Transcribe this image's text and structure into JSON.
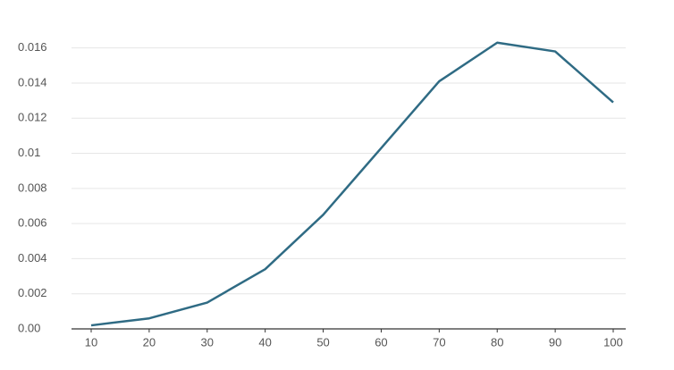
{
  "chart_data": {
    "type": "line",
    "x": [
      10,
      20,
      30,
      40,
      50,
      60,
      70,
      80,
      90,
      100
    ],
    "series": [
      {
        "color": "#2f6b84",
        "values": [
          0.0002,
          0.0006,
          0.0015,
          0.0034,
          0.0065,
          0.0103,
          0.0141,
          0.0163,
          0.0158,
          0.0129
        ]
      }
    ],
    "xlim": [
      10,
      100
    ],
    "xticks": [
      10,
      20,
      30,
      40,
      50,
      60,
      70,
      80,
      90,
      100
    ],
    "ylim": [
      0,
      0.017
    ],
    "yticks": [
      {
        "value": 0,
        "label": "0.00"
      },
      0.002,
      0.004,
      0.006,
      0.008,
      0.01,
      0.012,
      0.014,
      0.016
    ],
    "grid": true
  }
}
